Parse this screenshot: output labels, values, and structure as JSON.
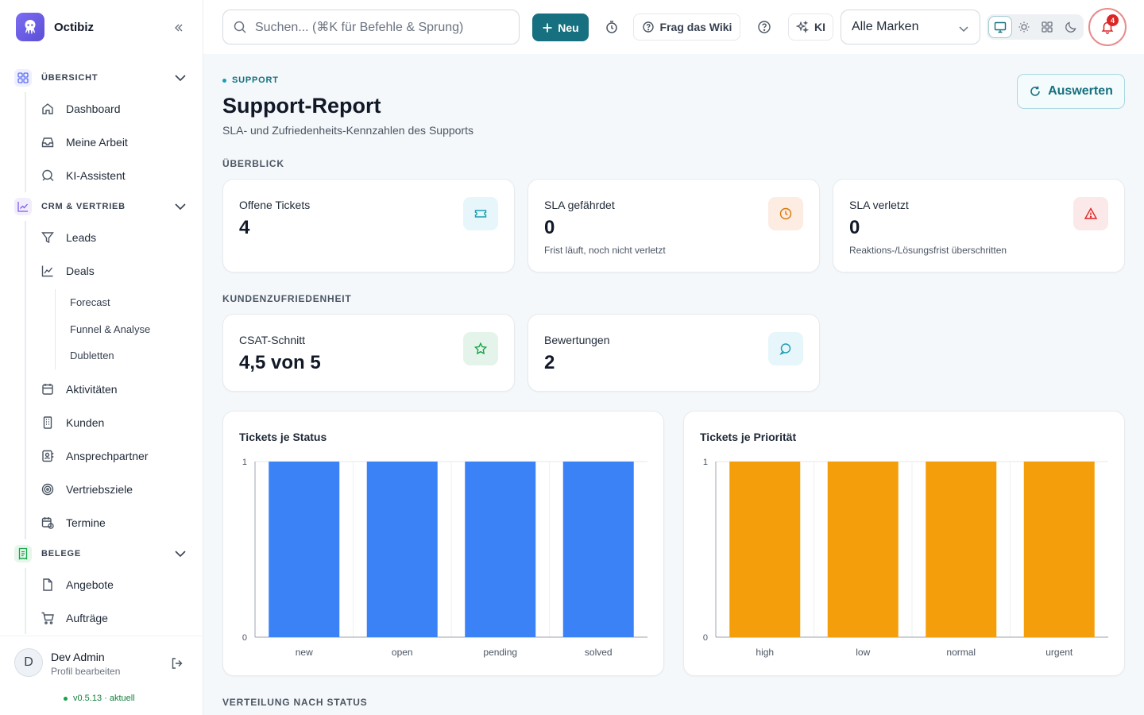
{
  "app": {
    "name": "Octibiz"
  },
  "sidebar": {
    "groups": [
      {
        "label": "ÜBERSICHT",
        "items": [
          "Dashboard",
          "Meine Arbeit",
          "KI-Assistent"
        ]
      },
      {
        "label": "CRM & VERTRIEB",
        "items": [
          "Leads",
          "Deals",
          "Aktivitäten",
          "Kunden",
          "Ansprechpartner",
          "Vertriebsziele",
          "Termine"
        ],
        "deal_subitems": [
          "Forecast",
          "Funnel & Analyse",
          "Dubletten"
        ]
      },
      {
        "label": "BELEGE",
        "items": [
          "Angebote",
          "Aufträge"
        ]
      }
    ],
    "user": {
      "initial": "D",
      "name": "Dev Admin",
      "sub": "Profil bearbeiten"
    },
    "version": "v0.5.13 · aktuell"
  },
  "topbar": {
    "search_placeholder": "Suchen... (⌘K für Befehle & Sprung)",
    "new_label": "Neu",
    "wiki_label": "Frag das Wiki",
    "ai_label": "KI",
    "brand_select": "Alle Marken",
    "notifications": "4"
  },
  "page": {
    "eyebrow": "SUPPORT",
    "title": "Support-Report",
    "subtitle": "SLA- und Zufriedenheits-Kennzahlen des Supports",
    "evaluate_label": "Auswerten",
    "section_overview": "ÜBERBLICK",
    "section_csat": "KUNDENZUFRIEDENHEIT",
    "section_distribution": "VERTEILUNG NACH STATUS"
  },
  "kpis": {
    "open": {
      "label": "Offene Tickets",
      "value": "4"
    },
    "at_risk": {
      "label": "SLA gefährdet",
      "value": "0",
      "note": "Frist läuft, noch nicht verletzt"
    },
    "breached": {
      "label": "SLA verletzt",
      "value": "0",
      "note": "Reaktions-/Lösungsfrist überschritten"
    },
    "csat": {
      "label": "CSAT-Schnitt",
      "value": "4,5 von 5"
    },
    "ratings": {
      "label": "Bewertungen",
      "value": "2"
    }
  },
  "colors": {
    "accent": "#16707f",
    "status_bar": "#3b82f6",
    "priority_bar": "#f59e0b"
  },
  "chart_data": [
    {
      "type": "bar",
      "title": "Tickets je Status",
      "categories": [
        "new",
        "open",
        "pending",
        "solved"
      ],
      "values": [
        1,
        1,
        1,
        1
      ],
      "ylim": [
        0,
        1
      ],
      "yticks": [
        "0",
        "1"
      ],
      "color": "#3b82f6"
    },
    {
      "type": "bar",
      "title": "Tickets je Priorität",
      "categories": [
        "high",
        "low",
        "normal",
        "urgent"
      ],
      "values": [
        1,
        1,
        1,
        1
      ],
      "ylim": [
        0,
        1
      ],
      "yticks": [
        "0",
        "1"
      ],
      "color": "#f59e0b"
    }
  ]
}
